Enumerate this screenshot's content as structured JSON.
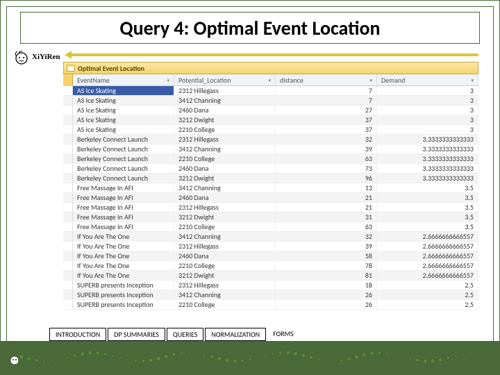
{
  "title": "Query 4: Optimal Event Location",
  "logo_text": "XiYiRen",
  "window_header": "Optimal Event Location",
  "columns": [
    "EventName",
    "Potential_Location",
    "distance",
    "Demand"
  ],
  "rows": [
    {
      "event": "AS Ice Skating",
      "loc": "2312 Hillegass",
      "dist": "7",
      "dem": "3",
      "active": true
    },
    {
      "event": "AS Ice Skating",
      "loc": "3412 Channing",
      "dist": "7",
      "dem": "3"
    },
    {
      "event": "AS Ice Skating",
      "loc": "2460 Dana",
      "dist": "27",
      "dem": "3"
    },
    {
      "event": "AS Ice Skating",
      "loc": "3212 Dwight",
      "dist": "37",
      "dem": "3"
    },
    {
      "event": "AS Ice Skating",
      "loc": "2210 College",
      "dist": "37",
      "dem": "3"
    },
    {
      "event": "Berkeley Connect Launch",
      "loc": "2312 Hillegass",
      "dist": "32",
      "dem": "3.3333333333333"
    },
    {
      "event": "Berkeley Connect Launch",
      "loc": "3412 Channing",
      "dist": "39",
      "dem": "3.3333333333333"
    },
    {
      "event": "Berkeley Connect Launch",
      "loc": "2210 College",
      "dist": "63",
      "dem": "3.3333333333333"
    },
    {
      "event": "Berkeley Connect Launch",
      "loc": "2460 Dana",
      "dist": "73",
      "dem": "3.3333333333333"
    },
    {
      "event": "Berkeley Connect Launch",
      "loc": "3212 Dwight",
      "dist": "96",
      "dem": "3.3333333333333"
    },
    {
      "event": "Free Massage In AFI",
      "loc": "3412 Channing",
      "dist": "13",
      "dem": "3.5"
    },
    {
      "event": "Free Massage In AFI",
      "loc": "2460 Dana",
      "dist": "21",
      "dem": "3.5"
    },
    {
      "event": "Free Massage In AFI",
      "loc": "2312 Hillegass",
      "dist": "21",
      "dem": "3.5"
    },
    {
      "event": "Free Massage In AFI",
      "loc": "3212 Dwight",
      "dist": "31",
      "dem": "3.5"
    },
    {
      "event": "Free Massage In AFI",
      "loc": "2210 College",
      "dist": "63",
      "dem": "3.5"
    },
    {
      "event": "If You Are The One",
      "loc": "3412 Channing",
      "dist": "32",
      "dem": "2.6666666666557"
    },
    {
      "event": "If You Are The One",
      "loc": "2312 Hillegass",
      "dist": "39",
      "dem": "2.6666666666557"
    },
    {
      "event": "If You Are The One",
      "loc": "2460 Dana",
      "dist": "58",
      "dem": "2.6666666666557"
    },
    {
      "event": "If You Are The One",
      "loc": "2210 College",
      "dist": "78",
      "dem": "2.6666666666557"
    },
    {
      "event": "If You Are The One",
      "loc": "3212 Dwight",
      "dist": "81",
      "dem": "2.6666666666557"
    },
    {
      "event": "SUPERB presents Inception",
      "loc": "2312 Hillegass",
      "dist": "18",
      "dem": "2.5"
    },
    {
      "event": "SUPERB presents Inception",
      "loc": "3412 Channing",
      "dist": "26",
      "dem": "2.5"
    },
    {
      "event": "SUPERB presents Inception",
      "loc": "2210 College",
      "dist": "26",
      "dem": "2.5"
    }
  ],
  "nav_tabs": [
    {
      "label": "INTRODUCTION",
      "border": true
    },
    {
      "label": "DP SUMMARIES",
      "border": true
    },
    {
      "label": "QUERIES",
      "border": true
    },
    {
      "label": "NORMALIZATION",
      "border": true
    },
    {
      "label": "FORMS",
      "border": false
    }
  ],
  "colors": {
    "olive": "#4a6a3a",
    "yellow_arrow": "#d6c83a",
    "header_grad_top": "#fce9a8",
    "header_grad_bot": "#f5d46b",
    "sel_blue": "#3a5ca8",
    "dot_green": "#5a8a3a"
  }
}
